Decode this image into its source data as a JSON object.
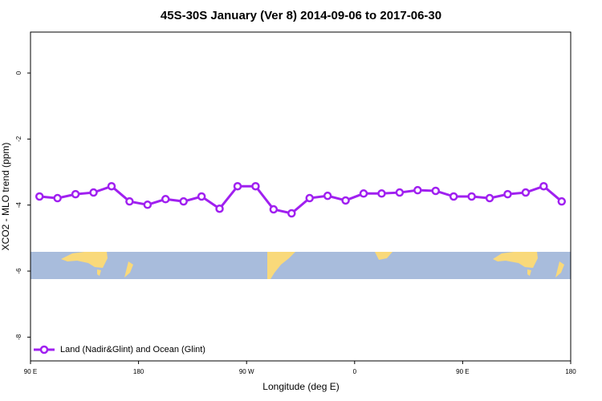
{
  "chart_data": {
    "type": "line",
    "title": "45S-30S January (Ver 8)   2014-09-06 to 2017-06-30",
    "x_label": "Longitude (deg E)",
    "y_label": "XCO2 - MLO trend (ppm)",
    "x": [
      97.5,
      112.5,
      127.5,
      142.5,
      157.5,
      172.5,
      187.5,
      202.5,
      217.5,
      232.5,
      247.5,
      262.5,
      277.5,
      292.5,
      307.5,
      322.5,
      337.5,
      352.5,
      367.5,
      382.5,
      397.5,
      412.5,
      427.5,
      442.5,
      457.5,
      472.5,
      487.5,
      502.5,
      517.5,
      532.5
    ],
    "series": [
      {
        "name": "Land (Nadir&Glint) and Ocean (Glint)",
        "color": "#a020f0",
        "values": [
          -3.74,
          -3.79,
          -3.67,
          -3.62,
          -3.43,
          -3.89,
          -3.99,
          -3.82,
          -3.89,
          -3.74,
          -4.11,
          -3.43,
          -3.43,
          -4.13,
          -4.25,
          -3.79,
          -3.72,
          -3.86,
          -3.65,
          -3.65,
          -3.62,
          -3.55,
          -3.57,
          -3.74,
          -3.74,
          -3.79,
          -3.67,
          -3.62,
          -3.43,
          -3.89
        ]
      }
    ],
    "xlim": [
      90,
      540
    ],
    "xticks": [
      {
        "value": 90,
        "label": "90 E"
      },
      {
        "value": 180,
        "label": "180"
      },
      {
        "value": 270,
        "label": "90 W"
      },
      {
        "value": 360,
        "label": "0"
      },
      {
        "value": 450,
        "label": "90 E"
      },
      {
        "value": 540,
        "label": "180"
      }
    ],
    "ylim": [
      -8.72,
      1.24
    ],
    "yticks": [
      0,
      -2,
      -4,
      -6,
      -8
    ],
    "legend": "bottom-left",
    "grid": false
  }
}
